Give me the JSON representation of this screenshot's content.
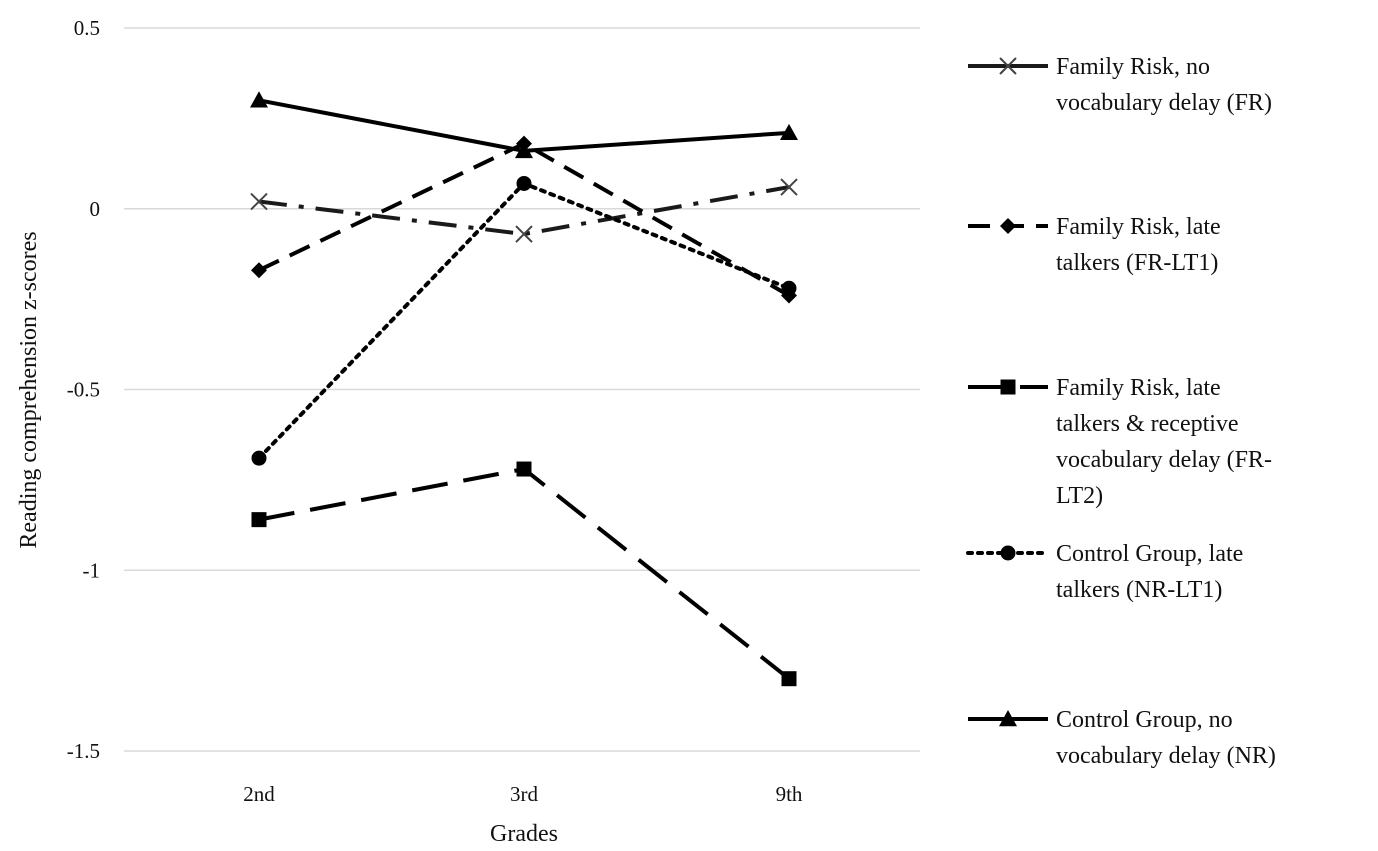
{
  "chart_data": {
    "type": "line",
    "title": "",
    "xlabel": "Grades",
    "ylabel": "Reading comprehension z-scores",
    "categories": [
      "2nd",
      "3rd",
      "9th"
    ],
    "ylim": [
      -1.5,
      0.5
    ],
    "yticks": [
      "0.5",
      "0",
      "-0.5",
      "-1",
      "-1.5"
    ],
    "ytick_values": [
      0.5,
      0,
      -0.5,
      -1,
      -1.5
    ],
    "grid": "horizontal",
    "legend_position": "right",
    "series": [
      {
        "name": "Family Risk, no vocabulary delay (FR)",
        "legend_lines": [
          "Family Risk, no",
          "vocabulary delay (FR)"
        ],
        "values": [
          0.02,
          -0.07,
          0.06
        ],
        "marker": "x",
        "dash": "long-dash-dot",
        "color": "#1a1a1a"
      },
      {
        "name": "Family Risk, late talkers (FR-LT1)",
        "legend_lines": [
          "Family Risk, late",
          "talkers (FR-LT1)"
        ],
        "values": [
          -0.17,
          0.18,
          -0.24
        ],
        "marker": "diamond",
        "dash": "dash",
        "color": "#000000"
      },
      {
        "name": "Family Risk, late talkers & receptive vocabulary delay (FR-LT2)",
        "legend_lines": [
          "Family Risk, late",
          "talkers & receptive",
          "vocabulary delay (FR-",
          "LT2)"
        ],
        "values": [
          -0.86,
          -0.72,
          -1.3
        ],
        "marker": "square",
        "dash": "long-dash",
        "color": "#000000"
      },
      {
        "name": "Control Group, late talkers (NR-LT1)",
        "legend_lines": [
          "Control Group, late",
          "talkers (NR-LT1)"
        ],
        "values": [
          -0.69,
          0.07,
          -0.22
        ],
        "marker": "circle",
        "dash": "dot",
        "color": "#000000"
      },
      {
        "name": "Control Group, no vocabulary delay (NR)",
        "legend_lines": [
          "Control Group, no",
          "vocabulary delay (NR)"
        ],
        "values": [
          0.3,
          0.16,
          0.21
        ],
        "marker": "triangle",
        "dash": "solid",
        "color": "#000000"
      }
    ]
  }
}
